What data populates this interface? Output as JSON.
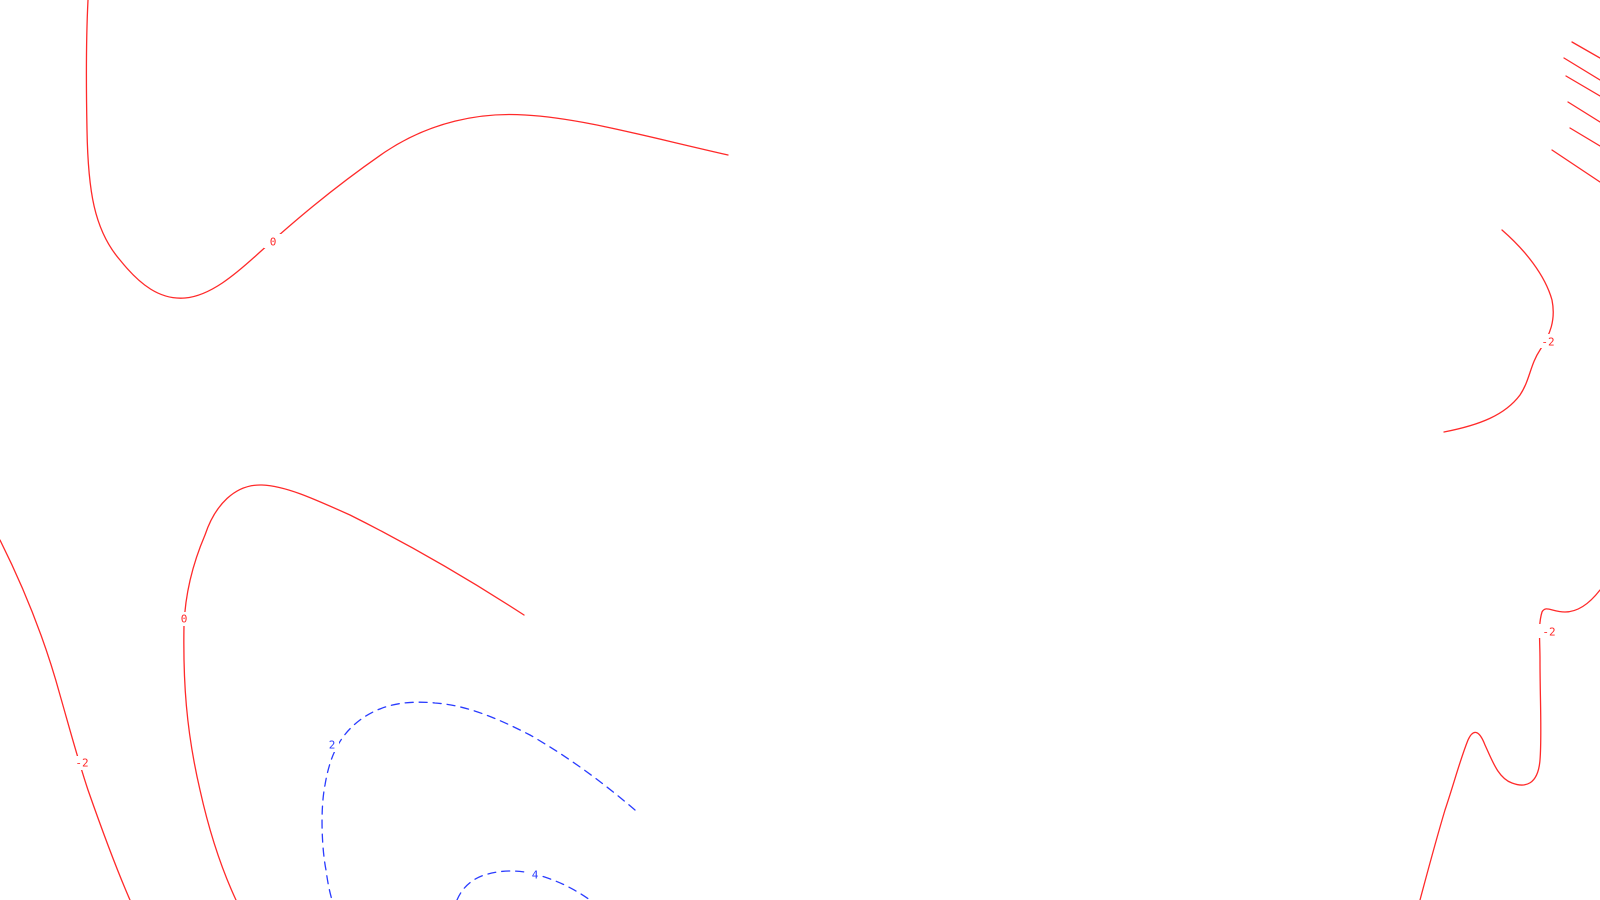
{
  "map": {
    "colors": {
      "background": "#ffffff",
      "positive_contour": "#ff2a2a",
      "negative_contour": "#2a3cff"
    },
    "contour_labels": {
      "zero_upper": "0",
      "zero_lower": "0",
      "minus2_left": "-2",
      "minus2_right_upper": "-2",
      "minus2_right_lower": "-2",
      "two_blue": "2",
      "four_blue": "4"
    }
  }
}
